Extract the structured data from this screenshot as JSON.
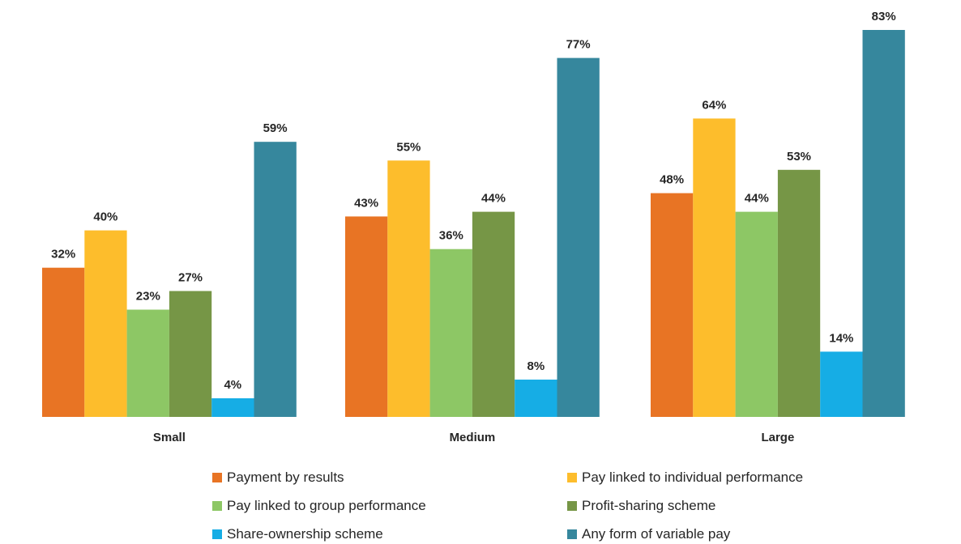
{
  "chart_data": {
    "type": "bar",
    "title": "",
    "xlabel": "",
    "ylabel": "",
    "ylim": [
      0,
      83
    ],
    "grid": false,
    "legend_position": "bottom",
    "value_suffix": "%",
    "categories": [
      "Small",
      "Medium",
      "Large"
    ],
    "series": [
      {
        "name": "Payment by results",
        "color": "#E87424",
        "values": [
          32,
          43,
          48
        ]
      },
      {
        "name": "Pay linked to individual performance",
        "color": "#FDBD2C",
        "values": [
          40,
          55,
          64
        ]
      },
      {
        "name": "Pay linked to group performance",
        "color": "#8DC765",
        "values": [
          23,
          36,
          44
        ]
      },
      {
        "name": "Profit-sharing scheme",
        "color": "#769646",
        "values": [
          27,
          44,
          53
        ]
      },
      {
        "name": "Share-ownership scheme",
        "color": "#16ADE5",
        "values": [
          4,
          8,
          14
        ]
      },
      {
        "name": "Any form of variable pay",
        "color": "#36879D",
        "values": [
          59,
          77,
          83
        ]
      }
    ]
  }
}
